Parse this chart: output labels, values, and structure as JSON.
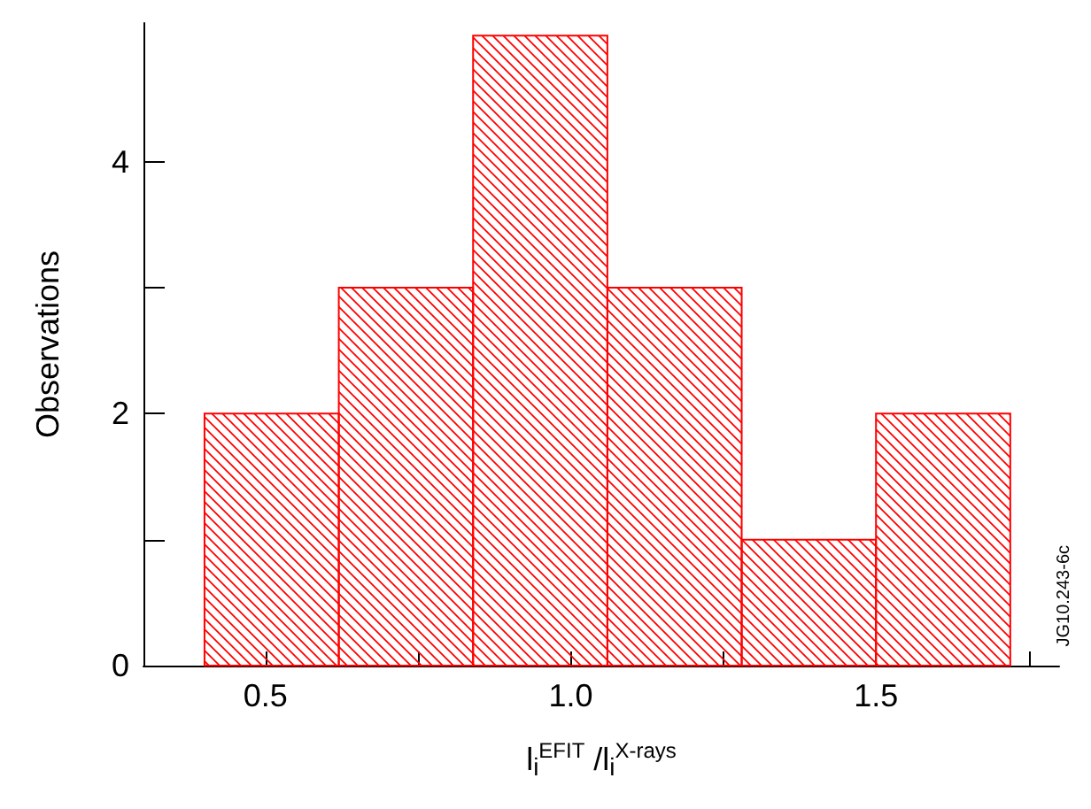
{
  "chart_data": {
    "type": "histogram",
    "xlabel": "l$_{i}$$^{EFIT}$ /l$_{i}$$^{X-rays}$",
    "ylabel": "Observations",
    "bins": [
      0.4,
      0.62,
      0.84,
      1.06,
      1.28,
      1.5,
      1.72
    ],
    "values": [
      2,
      3,
      5,
      3,
      1,
      2
    ],
    "color": "#ff0000",
    "xlim": [
      0.3,
      1.8
    ],
    "xticks": [
      0.5,
      {
        "value": 0.75,
        "label": null
      },
      {
        "value": 1.0,
        "label": "1.0"
      },
      {
        "value": 1.25,
        "label": null
      },
      1.5,
      {
        "value": 1.75,
        "label": null
      }
    ],
    "ylim": [
      0,
      5.1
    ],
    "yticks": [
      0,
      {
        "value": 1,
        "label": null
      },
      2,
      {
        "value": 3,
        "label": null
      },
      4
    ],
    "annotations": [
      "JG10.243-6c"
    ]
  }
}
